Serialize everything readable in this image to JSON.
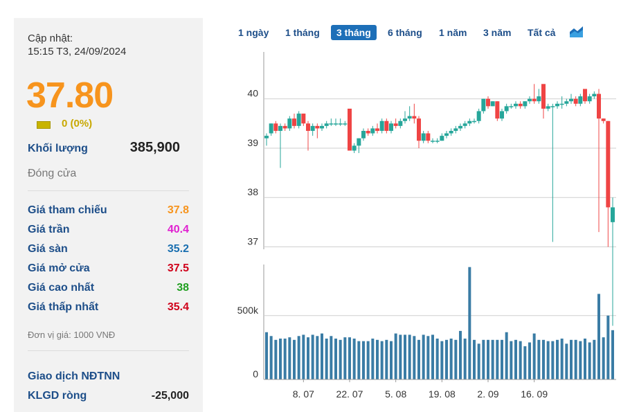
{
  "update": {
    "label": "Cập nhật:",
    "time": "15:15 T3, 24/09/2024"
  },
  "price": {
    "value": "37.80",
    "change": "0 (0%)"
  },
  "volume": {
    "label": "Khối lượng",
    "value": "385,900"
  },
  "close_label": "Đóng cửa",
  "stats": [
    {
      "label": "Giá tham chiếu",
      "value": "37.8",
      "color": "#f7941d"
    },
    {
      "label": "Giá trần",
      "value": "40.4",
      "color": "#e020d0"
    },
    {
      "label": "Giá sàn",
      "value": "35.2",
      "color": "#1a6fb0"
    },
    {
      "label": "Giá mở cửa",
      "value": "37.5",
      "color": "#d0021b"
    },
    {
      "label": "Giá cao nhất",
      "value": "38",
      "color": "#1f9f1f"
    },
    {
      "label": "Giá thấp nhất",
      "value": "35.4",
      "color": "#d0021b"
    }
  ],
  "unit_note": "Đơn vị giá: 1000 VNĐ",
  "foreign": {
    "title": "Giao dịch NĐTNN",
    "net_label": "KLGD ròng",
    "net_value": "-25,000"
  },
  "tabs": [
    "1 ngày",
    "1 tháng",
    "3 tháng",
    "6 tháng",
    "1 năm",
    "3 năm",
    "Tất cả"
  ],
  "active_tab": "3 tháng",
  "colors": {
    "up": "#26a69a",
    "down": "#ef4444",
    "volume": "#3a7ca5",
    "accent": "#1d4e89"
  },
  "chart_data": {
    "type": "candlestick",
    "price_axis": {
      "ticks": [
        37,
        38,
        39,
        40
      ],
      "ylim": [
        36.95,
        40.95
      ]
    },
    "volume_axis": {
      "ticks": [
        "0",
        "500k"
      ],
      "ylim": [
        0,
        900000
      ]
    },
    "x_labels": [
      {
        "label": "8. 07",
        "index": 8
      },
      {
        "label": "22. 07",
        "index": 18
      },
      {
        "label": "5. 08",
        "index": 28
      },
      {
        "label": "19. 08",
        "index": 38
      },
      {
        "label": "2. 09",
        "index": 48
      },
      {
        "label": "16. 09",
        "index": 58
      }
    ],
    "candles": [
      {
        "o": 39.2,
        "c": 39.25,
        "h": 39.3,
        "l": 39.05,
        "v": 370000
      },
      {
        "o": 39.3,
        "c": 39.5,
        "h": 39.5,
        "l": 39.25,
        "v": 340000
      },
      {
        "o": 39.5,
        "c": 39.35,
        "h": 39.55,
        "l": 39.3,
        "v": 310000
      },
      {
        "o": 39.35,
        "c": 39.45,
        "h": 39.5,
        "l": 38.6,
        "v": 320000
      },
      {
        "o": 39.45,
        "c": 39.4,
        "h": 39.5,
        "l": 39.35,
        "v": 320000
      },
      {
        "o": 39.4,
        "c": 39.6,
        "h": 39.65,
        "l": 39.35,
        "v": 330000
      },
      {
        "o": 39.6,
        "c": 39.45,
        "h": 39.7,
        "l": 39.4,
        "v": 310000
      },
      {
        "o": 39.45,
        "c": 39.7,
        "h": 39.75,
        "l": 39.4,
        "v": 340000
      },
      {
        "o": 39.7,
        "c": 39.5,
        "h": 39.7,
        "l": 39.45,
        "v": 350000
      },
      {
        "o": 39.5,
        "c": 39.35,
        "h": 39.55,
        "l": 38.95,
        "v": 330000
      },
      {
        "o": 39.35,
        "c": 39.45,
        "h": 39.5,
        "l": 39.25,
        "v": 350000
      },
      {
        "o": 39.45,
        "c": 39.4,
        "h": 39.5,
        "l": 39.2,
        "v": 340000
      },
      {
        "o": 39.4,
        "c": 39.45,
        "h": 39.5,
        "l": 39.35,
        "v": 360000
      },
      {
        "o": 39.45,
        "c": 39.5,
        "h": 39.55,
        "l": 39.4,
        "v": 320000
      },
      {
        "o": 39.5,
        "c": 39.5,
        "h": 39.6,
        "l": 39.45,
        "v": 340000
      },
      {
        "o": 39.5,
        "c": 39.5,
        "h": 39.6,
        "l": 39.45,
        "v": 320000
      },
      {
        "o": 39.5,
        "c": 39.5,
        "h": 39.6,
        "l": 39.45,
        "v": 310000
      },
      {
        "o": 39.5,
        "c": 39.5,
        "h": 39.55,
        "l": 39.45,
        "v": 330000
      },
      {
        "o": 39.8,
        "c": 38.95,
        "h": 39.8,
        "l": 38.95,
        "v": 330000
      },
      {
        "o": 38.95,
        "c": 39.05,
        "h": 39.1,
        "l": 38.9,
        "v": 320000
      },
      {
        "o": 39.05,
        "c": 39.2,
        "h": 39.2,
        "l": 38.9,
        "v": 300000
      },
      {
        "o": 39.2,
        "c": 39.35,
        "h": 39.4,
        "l": 39.15,
        "v": 300000
      },
      {
        "o": 39.35,
        "c": 39.3,
        "h": 39.4,
        "l": 39.25,
        "v": 300000
      },
      {
        "o": 39.3,
        "c": 39.4,
        "h": 39.45,
        "l": 39.25,
        "v": 320000
      },
      {
        "o": 39.4,
        "c": 39.35,
        "h": 39.5,
        "l": 39.3,
        "v": 310000
      },
      {
        "o": 39.35,
        "c": 39.55,
        "h": 39.6,
        "l": 39.3,
        "v": 300000
      },
      {
        "o": 39.55,
        "c": 39.35,
        "h": 39.6,
        "l": 39.3,
        "v": 310000
      },
      {
        "o": 39.35,
        "c": 39.5,
        "h": 39.55,
        "l": 39.3,
        "v": 300000
      },
      {
        "o": 39.5,
        "c": 39.45,
        "h": 39.6,
        "l": 39.4,
        "v": 360000
      },
      {
        "o": 39.45,
        "c": 39.55,
        "h": 39.6,
        "l": 39.4,
        "v": 350000
      },
      {
        "o": 39.55,
        "c": 39.6,
        "h": 39.75,
        "l": 39.5,
        "v": 350000
      },
      {
        "o": 39.6,
        "c": 39.65,
        "h": 39.85,
        "l": 39.55,
        "v": 350000
      },
      {
        "o": 39.65,
        "c": 39.6,
        "h": 39.9,
        "l": 39.5,
        "v": 340000
      },
      {
        "o": 39.6,
        "c": 39.15,
        "h": 39.65,
        "l": 39.0,
        "v": 310000
      },
      {
        "o": 39.15,
        "c": 39.3,
        "h": 39.35,
        "l": 39.1,
        "v": 350000
      },
      {
        "o": 39.3,
        "c": 39.15,
        "h": 39.35,
        "l": 39.1,
        "v": 340000
      },
      {
        "o": 39.15,
        "c": 39.15,
        "h": 39.2,
        "l": 39.1,
        "v": 350000
      },
      {
        "o": 39.15,
        "c": 39.15,
        "h": 39.2,
        "l": 39.1,
        "v": 320000
      },
      {
        "o": 39.15,
        "c": 39.25,
        "h": 39.3,
        "l": 39.15,
        "v": 300000
      },
      {
        "o": 39.25,
        "c": 39.3,
        "h": 39.35,
        "l": 39.2,
        "v": 310000
      },
      {
        "o": 39.3,
        "c": 39.35,
        "h": 39.4,
        "l": 39.25,
        "v": 320000
      },
      {
        "o": 39.35,
        "c": 39.4,
        "h": 39.45,
        "l": 39.3,
        "v": 310000
      },
      {
        "o": 39.4,
        "c": 39.45,
        "h": 39.5,
        "l": 39.35,
        "v": 380000
      },
      {
        "o": 39.45,
        "c": 39.5,
        "h": 39.55,
        "l": 39.4,
        "v": 320000
      },
      {
        "o": 39.5,
        "c": 39.55,
        "h": 39.6,
        "l": 39.45,
        "v": 880000
      },
      {
        "o": 39.55,
        "c": 39.55,
        "h": 39.6,
        "l": 39.5,
        "v": 310000
      },
      {
        "o": 39.55,
        "c": 39.75,
        "h": 39.8,
        "l": 39.5,
        "v": 280000
      },
      {
        "o": 39.75,
        "c": 40.0,
        "h": 40.0,
        "l": 39.7,
        "v": 310000
      },
      {
        "o": 40.0,
        "c": 39.85,
        "h": 40.05,
        "l": 39.8,
        "v": 310000
      },
      {
        "o": 39.85,
        "c": 39.95,
        "h": 39.95,
        "l": 39.85,
        "v": 310000
      },
      {
        "o": 39.95,
        "c": 39.6,
        "h": 39.95,
        "l": 39.55,
        "v": 310000
      },
      {
        "o": 39.6,
        "c": 39.75,
        "h": 39.8,
        "l": 39.55,
        "v": 310000
      },
      {
        "o": 39.75,
        "c": 39.85,
        "h": 39.9,
        "l": 39.7,
        "v": 370000
      },
      {
        "o": 39.85,
        "c": 39.85,
        "h": 39.9,
        "l": 39.8,
        "v": 300000
      },
      {
        "o": 39.85,
        "c": 39.9,
        "h": 39.95,
        "l": 39.8,
        "v": 310000
      },
      {
        "o": 39.9,
        "c": 39.85,
        "h": 39.95,
        "l": 39.8,
        "v": 300000
      },
      {
        "o": 39.85,
        "c": 39.95,
        "h": 39.95,
        "l": 39.8,
        "v": 260000
      },
      {
        "o": 39.95,
        "c": 40.0,
        "h": 40.05,
        "l": 39.9,
        "v": 290000
      },
      {
        "o": 40.0,
        "c": 39.95,
        "h": 40.3,
        "l": 39.9,
        "v": 360000
      },
      {
        "o": 39.95,
        "c": 40.05,
        "h": 40.2,
        "l": 39.9,
        "v": 310000
      },
      {
        "o": 40.3,
        "c": 39.8,
        "h": 40.3,
        "l": 39.6,
        "v": 310000
      },
      {
        "o": 39.8,
        "c": 39.85,
        "h": 39.9,
        "l": 39.75,
        "v": 300000
      },
      {
        "o": 39.85,
        "c": 39.85,
        "h": 39.9,
        "l": 37.1,
        "v": 300000
      },
      {
        "o": 39.85,
        "c": 39.9,
        "h": 39.95,
        "l": 39.8,
        "v": 310000
      },
      {
        "o": 39.9,
        "c": 39.9,
        "h": 40.05,
        "l": 39.8,
        "v": 320000
      },
      {
        "o": 39.9,
        "c": 39.95,
        "h": 40.0,
        "l": 39.85,
        "v": 280000
      },
      {
        "o": 39.95,
        "c": 40.0,
        "h": 40.1,
        "l": 39.9,
        "v": 310000
      },
      {
        "o": 40.0,
        "c": 39.9,
        "h": 40.05,
        "l": 39.85,
        "v": 310000
      },
      {
        "o": 39.9,
        "c": 40.05,
        "h": 40.1,
        "l": 39.85,
        "v": 300000
      },
      {
        "o": 40.2,
        "c": 39.95,
        "h": 40.2,
        "l": 39.9,
        "v": 320000
      },
      {
        "o": 39.95,
        "c": 40.05,
        "h": 40.1,
        "l": 39.9,
        "v": 290000
      },
      {
        "o": 40.05,
        "c": 40.1,
        "h": 40.15,
        "l": 40.0,
        "v": 310000
      },
      {
        "o": 40.1,
        "c": 39.6,
        "h": 40.2,
        "l": 37.3,
        "v": 670000
      },
      {
        "o": 39.6,
        "c": 39.55,
        "h": 39.6,
        "l": 39.5,
        "v": 330000
      },
      {
        "o": 39.55,
        "c": 37.8,
        "h": 39.55,
        "l": 37.0,
        "v": 500000
      },
      {
        "o": 37.5,
        "c": 37.8,
        "h": 38.0,
        "l": 35.4,
        "v": 385900
      }
    ]
  }
}
